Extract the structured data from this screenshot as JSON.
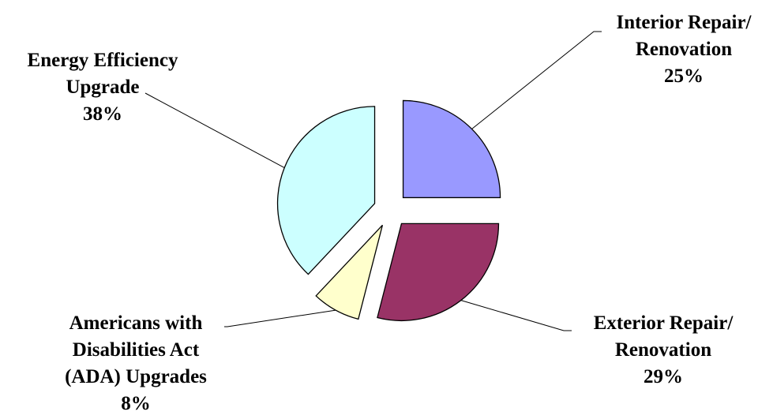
{
  "chart_data": {
    "type": "pie",
    "exploded": true,
    "slices": [
      {
        "name": "Interior Repair/ Renovation",
        "lines": [
          "Interior Repair/",
          "Renovation"
        ],
        "value": 25,
        "percent_label": "25%",
        "color": "#9999ff"
      },
      {
        "name": "Exterior Repair/ Renovation",
        "lines": [
          "Exterior Repair/",
          "Renovation"
        ],
        "value": 29,
        "percent_label": "29%",
        "color": "#993366"
      },
      {
        "name": "Americans with Disabilities Act (ADA) Upgrades",
        "lines": [
          "Americans with",
          "Disabilities Act",
          "(ADA) Upgrades"
        ],
        "value": 8,
        "percent_label": "8%",
        "color": "#ffffcc"
      },
      {
        "name": "Energy Efficiency Upgrade",
        "lines": [
          "Energy Efficiency",
          "Upgrade"
        ],
        "value": 38,
        "percent_label": "38%",
        "color": "#ccffff"
      }
    ]
  }
}
